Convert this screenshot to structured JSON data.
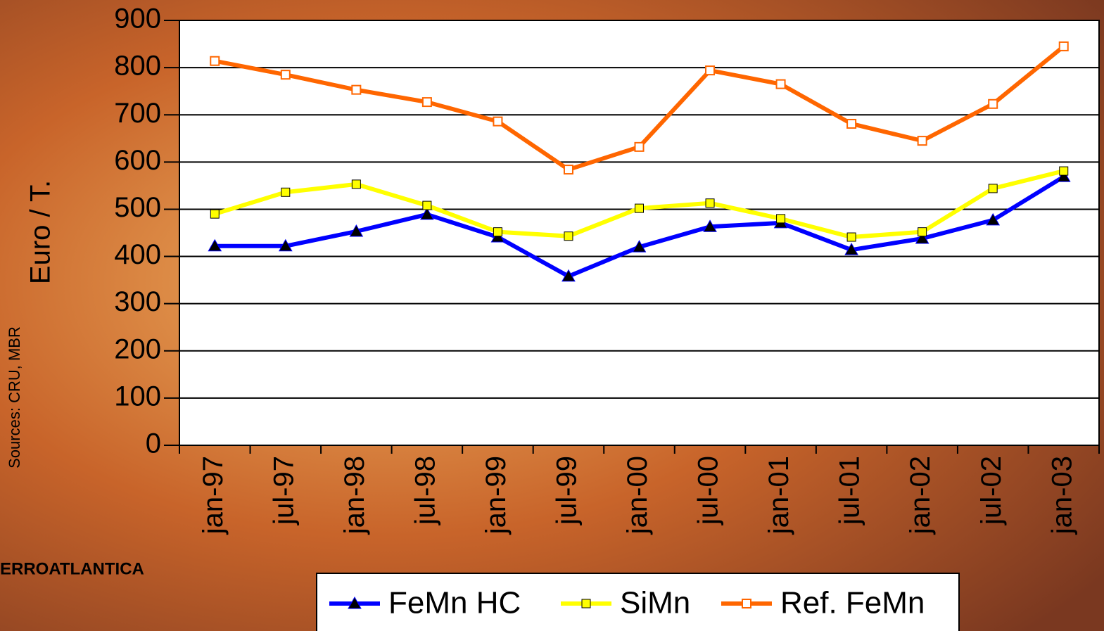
{
  "chart_data": {
    "type": "line",
    "y_label": "Euro / T.",
    "source": "Sources: CRU, MBR",
    "brand": "ERROATLANTICA",
    "categories": [
      "jan-97",
      "jul-97",
      "jan-98",
      "jul-98",
      "jan-99",
      "jul-99",
      "jan-00",
      "jul-00",
      "jan-01",
      "jul-01",
      "jan-02",
      "jul-02",
      "jan-03"
    ],
    "series": [
      {
        "name": "FeMn HC",
        "color": "#0000ff",
        "marker": "triangle",
        "values": [
          422,
          422,
          453,
          489,
          441,
          358,
          420,
          463,
          471,
          414,
          438,
          477,
          569
        ]
      },
      {
        "name": "SiMn",
        "color": "#ffff00",
        "marker": "square",
        "values": [
          490,
          536,
          553,
          508,
          452,
          443,
          502,
          513,
          480,
          441,
          452,
          544,
          581
        ]
      },
      {
        "name": "Ref. FeMn",
        "color": "#ff6600",
        "marker": "hollow-square",
        "values": [
          814,
          785,
          753,
          727,
          686,
          584,
          632,
          794,
          765,
          681,
          645,
          723,
          845
        ]
      }
    ],
    "ylim": [
      0,
      900
    ],
    "yticks": [
      0,
      100,
      200,
      300,
      400,
      500,
      600,
      700,
      800,
      900
    ],
    "grid": true
  }
}
